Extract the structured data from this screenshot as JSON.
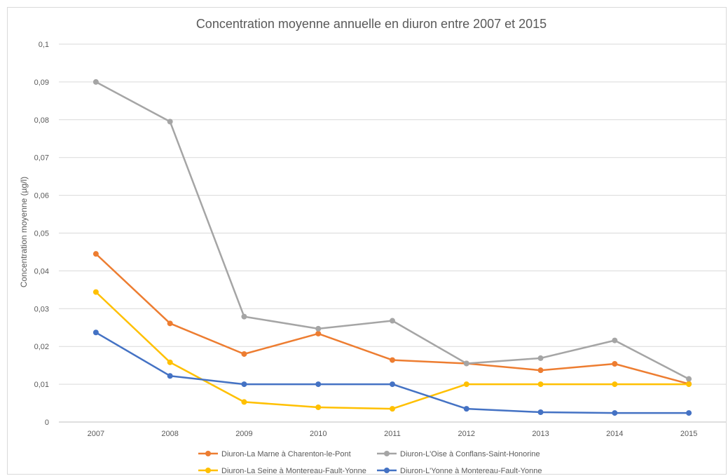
{
  "chart_data": {
    "type": "line",
    "title": "Concentration moyenne annuelle en diuron entre 2007 et 2015",
    "xlabel": "",
    "ylabel": "Concentration moyenne (µg/l)",
    "ylim": [
      0,
      0.1
    ],
    "y_ticks": [
      "0",
      "0,01",
      "0,02",
      "0,03",
      "0,04",
      "0,05",
      "0,06",
      "0,07",
      "0,08",
      "0,09",
      "0,1"
    ],
    "grid": true,
    "legend_position": "bottom",
    "categories": [
      "2007",
      "2008",
      "2009",
      "2010",
      "2011",
      "2012",
      "2013",
      "2014",
      "2015"
    ],
    "series": [
      {
        "name": "Diuron-La Marne à Charenton-le-Pont",
        "color": "#ed7d31",
        "values": [
          0.0445,
          0.0261,
          0.018,
          0.0234,
          0.0164,
          0.0155,
          0.0137,
          0.0154,
          0.0101
        ]
      },
      {
        "name": "Diuron-L'Oise à Conflans-Saint-Honorine",
        "color": "#a5a5a5",
        "values": [
          0.09,
          0.0795,
          0.0279,
          0.0247,
          0.0268,
          0.0155,
          0.0169,
          0.0216,
          0.0114
        ]
      },
      {
        "name": "Diuron-La Seine à Montereau-Fault-Yonne",
        "color": "#ffc000",
        "values": [
          0.0344,
          0.0158,
          0.0053,
          0.0039,
          0.0035,
          0.01,
          0.01,
          0.01,
          0.01
        ]
      },
      {
        "name": "Diuron-L'Yonne à Montereau-Fault-Yonne",
        "color": "#4472c4",
        "values": [
          0.0237,
          0.0122,
          0.01,
          0.01,
          0.01,
          0.0035,
          0.0026,
          0.0024,
          0.0024
        ]
      }
    ]
  }
}
